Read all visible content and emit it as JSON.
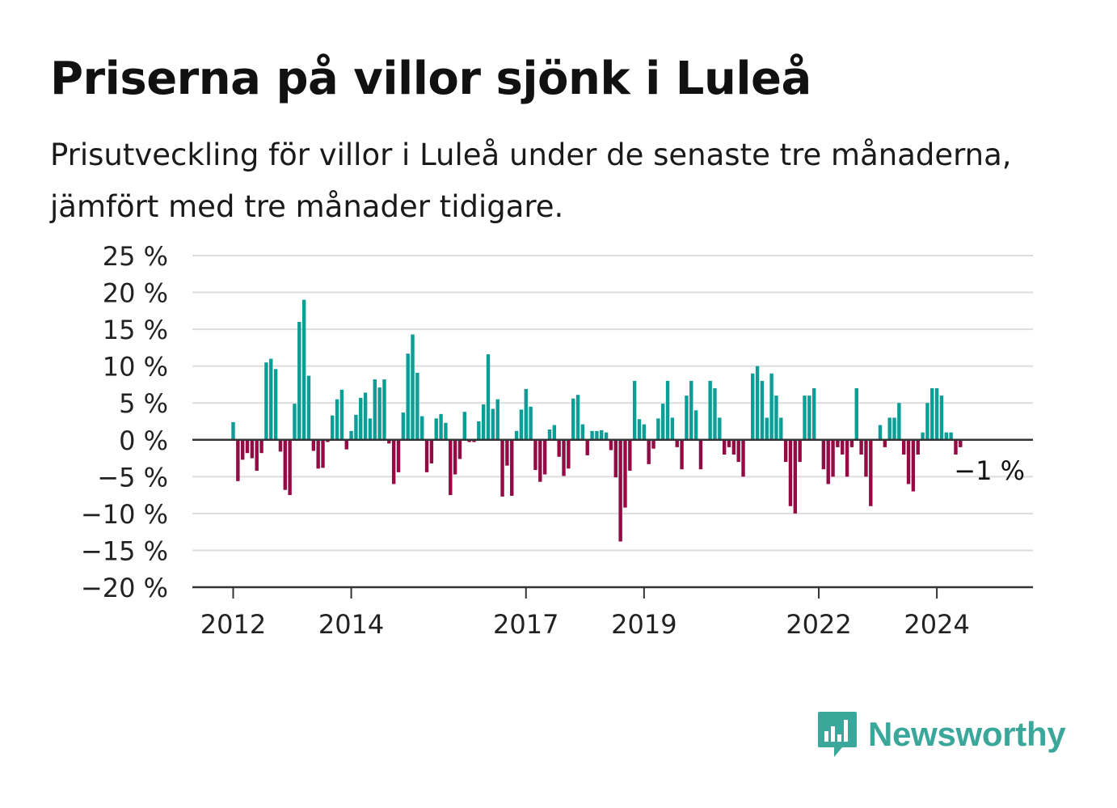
{
  "title": "Priserna på villor sjönk i Luleå",
  "subtitle": "Prisutveckling för villor i Luleå under de senaste tre månaderna, jämfört med tre månader tidigare.",
  "brand": {
    "name": "Newsworthy",
    "icon": "bar-chart-speech-bubble-icon",
    "color": "#3aa79a"
  },
  "colors": {
    "positive": "#0a9e96",
    "negative": "#930a45",
    "grid": "#dddddd",
    "axis": "#333333"
  },
  "chart_data": {
    "type": "bar",
    "ylim": [
      -20,
      25
    ],
    "y_ticks": [
      25,
      20,
      15,
      10,
      5,
      0,
      -5,
      -10,
      -15,
      -20
    ],
    "y_tick_labels": [
      "25 %",
      "20 %",
      "15 %",
      "10 %",
      "5 %",
      "0 %",
      "−5 %",
      "−10 %",
      "−15 %",
      "−20 %"
    ],
    "x_ticks": [
      {
        "label": "2012",
        "index": 0
      },
      {
        "label": "2014",
        "index": 25
      },
      {
        "label": "2017",
        "index": 62
      },
      {
        "label": "2019",
        "index": 87
      },
      {
        "label": "2022",
        "index": 124
      },
      {
        "label": "2024",
        "index": 149
      }
    ],
    "grid": true,
    "last_value_label": "−1 %",
    "values": [
      2.4,
      -5.6,
      -2.7,
      -1.8,
      -2.5,
      -4.2,
      -1.8,
      10.5,
      11,
      9.6,
      -1.6,
      -6.8,
      -7.5,
      4.9,
      16,
      19,
      8.7,
      -1.5,
      -3.9,
      -3.8,
      -0.3,
      3.3,
      5.5,
      6.8,
      -1.3,
      1.2,
      3.4,
      5.7,
      6.4,
      2.9,
      8.2,
      7.1,
      8.2,
      -0.5,
      -6,
      -4.4,
      3.7,
      11.7,
      14.3,
      9.1,
      3.2,
      -4.4,
      -3.2,
      2.9,
      3.5,
      2.3,
      -7.5,
      -4.7,
      -2.6,
      3.8,
      -0.3,
      -0.3,
      2.5,
      4.8,
      11.6,
      4.2,
      5.5,
      -7.7,
      -3.5,
      -7.6,
      1.2,
      4.1,
      6.9,
      4.5,
      -4.1,
      -5.7,
      -4.7,
      1.4,
      2,
      -2.3,
      -4.9,
      -3.9,
      5.6,
      6.1,
      2.1,
      -2.1,
      1.2,
      1.2,
      1.3,
      1,
      -1.4,
      -5.1,
      -13.8,
      -9.2,
      -4.2,
      8,
      2.8,
      2.1,
      -3.3,
      -1.2,
      2.9,
      4.9,
      8,
      3,
      -1,
      -4,
      6,
      8,
      4,
      -4,
      0,
      8,
      7,
      3,
      -2,
      -1,
      -2,
      -3,
      -5,
      0,
      9,
      10,
      8,
      3,
      9,
      6,
      3,
      -3,
      -9,
      -10,
      -3,
      6,
      6,
      7,
      0,
      -4,
      -6,
      -5,
      -1,
      -2,
      -5,
      -1,
      7,
      -2,
      -5,
      -9,
      0,
      2,
      -1,
      3,
      3,
      5,
      -2,
      -6,
      -7,
      -2,
      1,
      5,
      7,
      7,
      6,
      1,
      1,
      -2,
      -1
    ]
  }
}
